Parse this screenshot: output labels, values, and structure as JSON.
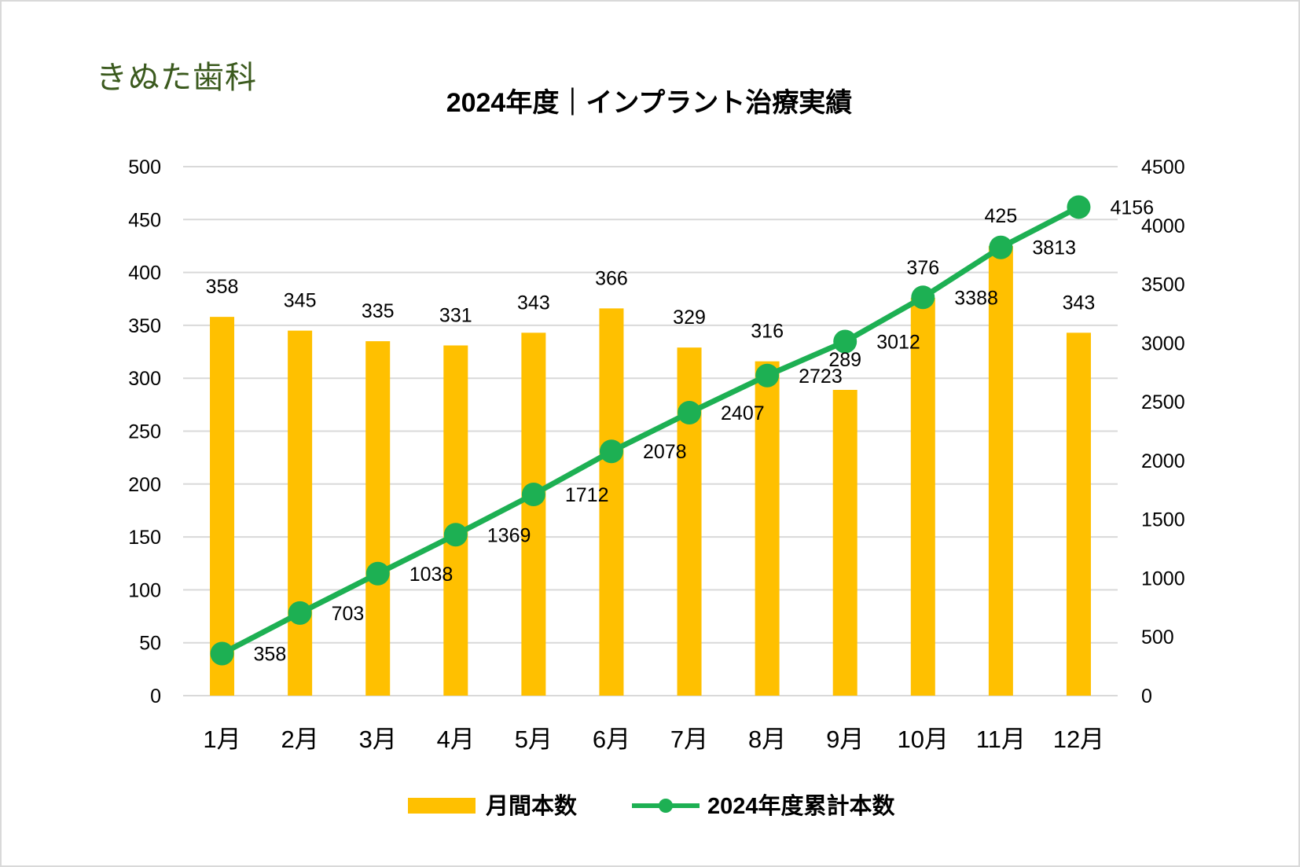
{
  "brand": "きぬた歯科",
  "colors": {
    "bar": "#FFC000",
    "line": "#1DB053",
    "grid": "#d9d9d9",
    "text": "#000000",
    "brand": "#3b5a1e"
  },
  "chart_data": {
    "type": "bar",
    "title": "2024年度｜インプラント治療実績",
    "categories": [
      "1月",
      "2月",
      "3月",
      "4月",
      "5月",
      "6月",
      "7月",
      "8月",
      "9月",
      "10月",
      "11月",
      "12月"
    ],
    "series": [
      {
        "name": "月間本数",
        "type": "bar",
        "axis": "left",
        "values": [
          358,
          345,
          335,
          331,
          343,
          366,
          329,
          316,
          289,
          376,
          425,
          343
        ]
      },
      {
        "name": "2024年度累計本数",
        "type": "line",
        "axis": "right",
        "values": [
          358,
          703,
          1038,
          1369,
          1712,
          2078,
          2407,
          2723,
          3012,
          3388,
          3813,
          4156
        ]
      }
    ],
    "ylim_left": [
      0,
      500
    ],
    "yticks_left": [
      0,
      50,
      100,
      150,
      200,
      250,
      300,
      350,
      400,
      450,
      500
    ],
    "ylim_right": [
      0,
      4500
    ],
    "yticks_right": [
      0,
      500,
      1000,
      1500,
      2000,
      2500,
      3000,
      3500,
      4000,
      4500
    ],
    "grid": true,
    "legend": "bottom"
  }
}
